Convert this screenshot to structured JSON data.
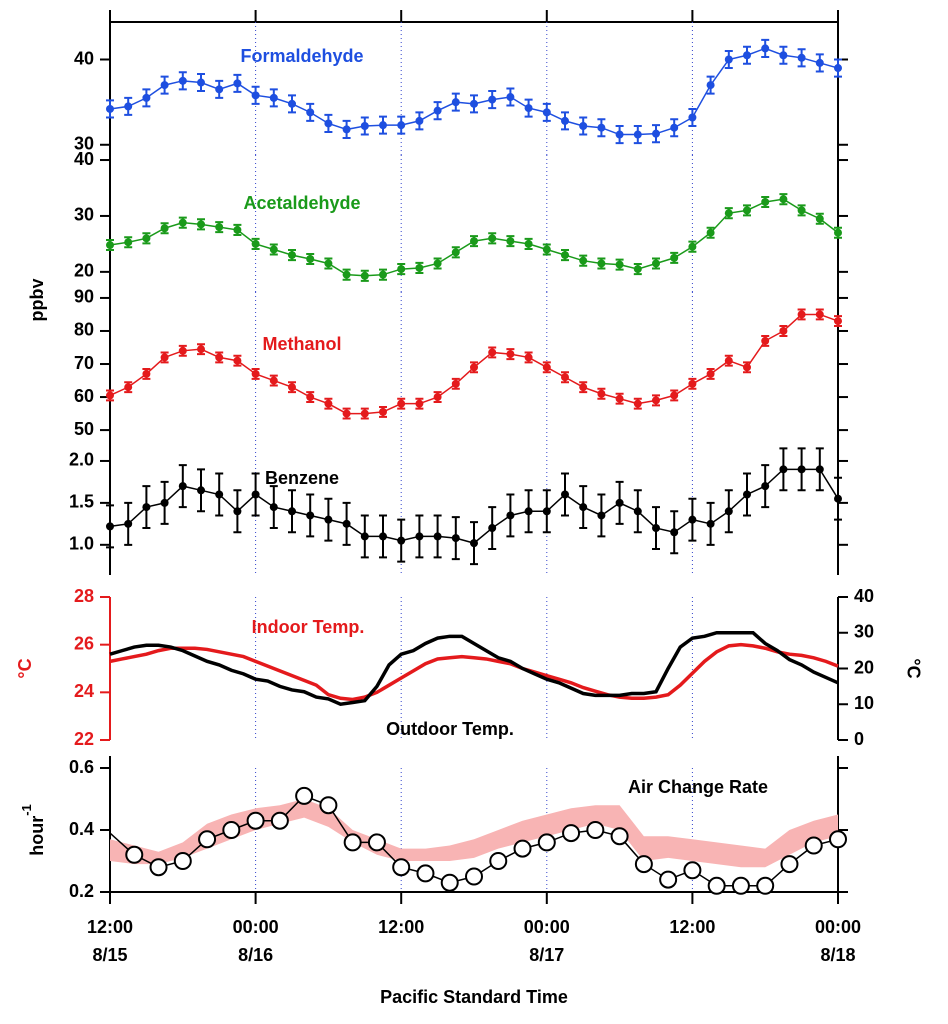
{
  "x_axis": {
    "label": "Pacific Standard Time",
    "xlim": [
      0,
      60
    ],
    "xticks": [
      {
        "value": 0,
        "label": "12:00"
      },
      {
        "value": 12,
        "label": "00:00"
      },
      {
        "value": 24,
        "label": "12:00"
      },
      {
        "value": 36,
        "label": "00:00"
      },
      {
        "value": 48,
        "label": "12:00"
      },
      {
        "value": 60,
        "label": "00:00"
      }
    ],
    "date_labels": [
      "8/15",
      "8/16",
      null,
      "8/17",
      null,
      "8/18"
    ],
    "grid": true
  },
  "voc_ylabel": "ppbv",
  "chart_data": [
    {
      "type": "errorbar",
      "ylim": [
        28.8,
        44.4
      ],
      "yticks": [
        30,
        40
      ],
      "x": [
        0,
        1.5,
        3,
        4.5,
        6,
        7.5,
        9,
        10.5,
        12,
        13.5,
        15,
        16.5,
        18,
        19.5,
        21,
        22.5,
        24,
        25.5,
        27,
        28.5,
        30,
        31.5,
        33,
        34.5,
        36,
        37.5,
        39,
        40.5,
        42,
        43.5,
        45,
        46.5,
        48,
        49.5,
        51,
        52.5,
        54,
        55.5,
        57,
        58.5,
        60
      ],
      "series": [
        {
          "name": "Formaldehyde",
          "color": "#1e4fe0",
          "values": [
            34.2,
            34.5,
            35.5,
            37.0,
            37.5,
            37.3,
            36.5,
            37.2,
            35.8,
            35.5,
            34.8,
            33.8,
            32.5,
            31.8,
            32.2,
            32.3,
            32.3,
            32.8,
            34.0,
            35.0,
            34.8,
            35.3,
            35.6,
            34.3,
            33.8,
            32.8,
            32.2,
            32.0,
            31.2,
            31.2,
            31.3,
            32.0,
            33.2,
            37.0,
            40.0,
            40.5,
            41.3,
            40.5,
            40.2,
            39.6,
            39.0
          ],
          "errors": [
            1,
            1,
            1,
            1,
            1,
            1,
            1,
            1,
            1,
            1,
            1,
            1,
            1,
            1,
            1,
            1,
            1,
            1,
            1,
            1,
            1,
            1,
            1,
            1,
            1,
            1,
            1,
            1,
            1,
            1,
            1,
            1,
            1,
            1,
            1,
            1,
            1,
            1,
            1,
            1,
            1
          ]
        }
      ]
    },
    {
      "type": "errorbar",
      "ylim": [
        16.4,
        40.9
      ],
      "yticks": [
        20,
        30,
        40
      ],
      "x": [
        0,
        1.5,
        3,
        4.5,
        6,
        7.5,
        9,
        10.5,
        12,
        13.5,
        15,
        16.5,
        18,
        19.5,
        21,
        22.5,
        24,
        25.5,
        27,
        28.5,
        30,
        31.5,
        33,
        34.5,
        36,
        37.5,
        39,
        40.5,
        42,
        43.5,
        45,
        46.5,
        48,
        49.5,
        51,
        52.5,
        54,
        55.5,
        57,
        58.5,
        60
      ],
      "series": [
        {
          "name": "Acetaldehyde",
          "color": "#1a9a1a",
          "values": [
            24.8,
            25.3,
            26,
            27.8,
            28.8,
            28.5,
            28,
            27.5,
            25,
            24,
            23,
            22.3,
            21.5,
            19.5,
            19.3,
            19.5,
            20.5,
            20.7,
            21.5,
            23.5,
            25.5,
            26,
            25.5,
            25,
            24,
            23,
            22,
            21.5,
            21.3,
            20.5,
            21.5,
            22.5,
            24.5,
            27,
            30.5,
            31,
            32.5,
            33,
            31,
            29.5,
            27
          ],
          "errors": [
            0.9,
            0.9,
            0.9,
            0.9,
            0.9,
            0.9,
            0.9,
            0.9,
            0.9,
            0.9,
            0.9,
            0.9,
            0.9,
            0.9,
            0.9,
            0.9,
            0.9,
            0.9,
            0.9,
            0.9,
            0.9,
            0.9,
            0.9,
            0.9,
            0.9,
            0.9,
            0.9,
            0.9,
            0.9,
            0.9,
            0.9,
            0.9,
            0.9,
            0.9,
            0.9,
            0.9,
            0.9,
            0.9,
            0.9,
            0.9,
            0.9
          ]
        }
      ]
    },
    {
      "type": "errorbar",
      "ylim": [
        47,
        91.8
      ],
      "yticks": [
        50,
        60,
        70,
        80,
        90
      ],
      "x": [
        0,
        1.5,
        3,
        4.5,
        6,
        7.5,
        9,
        10.5,
        12,
        13.5,
        15,
        16.5,
        18,
        19.5,
        21,
        22.5,
        24,
        25.5,
        27,
        28.5,
        30,
        31.5,
        33,
        34.5,
        36,
        37.5,
        39,
        40.5,
        42,
        43.5,
        45,
        46.5,
        48,
        49.5,
        51,
        52.5,
        54,
        55.5,
        57,
        58.5,
        60
      ],
      "series": [
        {
          "name": "Methanol",
          "color": "#e41a1c",
          "values": [
            60.5,
            63,
            67,
            72,
            74,
            74.5,
            72,
            71,
            67,
            65,
            63,
            60,
            58,
            55,
            55,
            55.5,
            58,
            58,
            60,
            64,
            69,
            73.5,
            73,
            72,
            69,
            66,
            63,
            61,
            59.5,
            58,
            59,
            60.5,
            64,
            67,
            71,
            69,
            77,
            80,
            85,
            85,
            83
          ],
          "errors": [
            1.5,
            1.5,
            1.5,
            1.5,
            1.5,
            1.5,
            1.5,
            1.5,
            1.5,
            1.5,
            1.5,
            1.5,
            1.5,
            1.5,
            1.5,
            1.5,
            1.5,
            1.5,
            1.5,
            1.5,
            1.5,
            1.5,
            1.5,
            1.5,
            1.5,
            1.5,
            1.5,
            1.5,
            1.5,
            1.5,
            1.5,
            1.5,
            1.5,
            1.5,
            1.5,
            1.5,
            1.5,
            1.5,
            1.5,
            1.5,
            1.5
          ]
        }
      ]
    },
    {
      "type": "errorbar",
      "ylim": [
        0.64,
        2.25
      ],
      "yticks": [
        {
          "value": 1,
          "label": "1.0"
        },
        {
          "value": 1.5,
          "label": "1.5"
        },
        {
          "value": 2,
          "label": "2.0"
        }
      ],
      "x": [
        0,
        1.5,
        3,
        4.5,
        6,
        7.5,
        9,
        10.5,
        12,
        13.5,
        15,
        16.5,
        18,
        19.5,
        21,
        22.5,
        24,
        25.5,
        27,
        28.5,
        30,
        31.5,
        33,
        34.5,
        36,
        37.5,
        39,
        40.5,
        42,
        43.5,
        45,
        46.5,
        48,
        49.5,
        51,
        52.5,
        54,
        55.5,
        57,
        58.5,
        60
      ],
      "series": [
        {
          "name": "Benzene",
          "color": "#000000",
          "values": [
            1.22,
            1.25,
            1.45,
            1.5,
            1.7,
            1.65,
            1.6,
            1.4,
            1.6,
            1.45,
            1.4,
            1.35,
            1.3,
            1.25,
            1.1,
            1.1,
            1.05,
            1.1,
            1.1,
            1.08,
            1.02,
            1.2,
            1.35,
            1.4,
            1.4,
            1.6,
            1.45,
            1.35,
            1.5,
            1.4,
            1.2,
            1.15,
            1.3,
            1.25,
            1.4,
            1.6,
            1.7,
            1.9,
            1.9,
            1.9,
            1.55
          ],
          "errors": [
            0.25,
            0.25,
            0.25,
            0.25,
            0.25,
            0.25,
            0.25,
            0.25,
            0.25,
            0.25,
            0.25,
            0.25,
            0.25,
            0.25,
            0.25,
            0.25,
            0.25,
            0.25,
            0.25,
            0.25,
            0.25,
            0.25,
            0.25,
            0.25,
            0.25,
            0.25,
            0.25,
            0.25,
            0.25,
            0.25,
            0.25,
            0.25,
            0.25,
            0.25,
            0.25,
            0.25,
            0.25,
            0.25,
            0.25,
            0.25,
            0.25
          ]
        }
      ]
    },
    {
      "type": "line",
      "ylim": [
        22,
        28
      ],
      "yticks": [
        22,
        24,
        26,
        28
      ],
      "ylabel": "°C",
      "yaxis_color": "#e41a1c",
      "y2lim": [
        0,
        40
      ],
      "y2ticks": [
        0,
        10,
        20,
        30,
        40
      ],
      "y2label": "°C",
      "x": [
        0,
        1,
        2,
        3,
        4,
        5,
        6,
        7,
        8,
        9,
        10,
        11,
        12,
        13,
        14,
        15,
        16,
        17,
        18,
        19,
        20,
        21,
        22,
        23,
        24,
        25,
        26,
        27,
        28,
        29,
        30,
        31,
        32,
        33,
        34,
        35,
        36,
        37,
        38,
        39,
        40,
        41,
        42,
        43,
        44,
        45,
        46,
        47,
        48,
        49,
        50,
        51,
        52,
        53,
        54,
        55,
        56,
        57,
        58,
        59,
        60
      ],
      "series": [
        {
          "name": "Indoor Temp.",
          "color": "#e41a1c",
          "values": [
            25.3,
            25.4,
            25.5,
            25.6,
            25.75,
            25.85,
            25.85,
            25.85,
            25.8,
            25.7,
            25.6,
            25.5,
            25.3,
            25.1,
            24.9,
            24.7,
            24.5,
            24.3,
            23.9,
            23.75,
            23.7,
            23.8,
            24.0,
            24.3,
            24.6,
            24.9,
            25.2,
            25.4,
            25.45,
            25.5,
            25.45,
            25.4,
            25.3,
            25.2,
            25.0,
            24.85,
            24.7,
            24.55,
            24.4,
            24.2,
            24.05,
            23.9,
            23.8,
            23.75,
            23.75,
            23.8,
            23.9,
            24.3,
            24.8,
            25.3,
            25.7,
            25.95,
            26.0,
            25.95,
            25.85,
            25.7,
            25.6,
            25.55,
            25.45,
            25.3,
            25.1
          ]
        },
        {
          "name": "Outdoor Temp.",
          "color": "#000000",
          "axis": "y2",
          "values": [
            24,
            25,
            26,
            26.5,
            26.5,
            26,
            25,
            23.5,
            22,
            21,
            19.5,
            18.5,
            17,
            16.5,
            15,
            14,
            13.5,
            12,
            11.5,
            10,
            10.5,
            11,
            15,
            21,
            24,
            25,
            27,
            28.5,
            29,
            29,
            27,
            25,
            23,
            22,
            20,
            18.5,
            17,
            16,
            14.5,
            13,
            12.5,
            12.5,
            12.5,
            13,
            13,
            13.5,
            20,
            26,
            28.5,
            29,
            30,
            30,
            30,
            30,
            27,
            25,
            22.5,
            21,
            19,
            17.5,
            16
          ]
        }
      ]
    },
    {
      "type": "band_line",
      "title": "Air Change Rate",
      "ylabel": "hour",
      "ylabel_sup": "-1",
      "ylim": [
        0.2,
        0.6
      ],
      "yticks": [
        {
          "value": 0.2,
          "label": "0.2"
        },
        {
          "value": 0.4,
          "label": "0.4"
        },
        {
          "value": 0.6,
          "label": "0.6"
        }
      ],
      "x": [
        0,
        2,
        4,
        6,
        8,
        10,
        12,
        14,
        16,
        18,
        20,
        22,
        24,
        26,
        28,
        30,
        32,
        34,
        36,
        38,
        40,
        42,
        44,
        46,
        48,
        50,
        52,
        54,
        56,
        58,
        60
      ],
      "band": {
        "color": "#f8b4b4",
        "upper": [
          0.37,
          0.35,
          0.33,
          0.36,
          0.42,
          0.45,
          0.47,
          0.48,
          0.5,
          0.47,
          0.4,
          0.37,
          0.34,
          0.34,
          0.35,
          0.37,
          0.4,
          0.43,
          0.45,
          0.47,
          0.48,
          0.48,
          0.38,
          0.38,
          0.37,
          0.36,
          0.35,
          0.34,
          0.4,
          0.43,
          0.45
        ],
        "lower": [
          0.3,
          0.29,
          0.29,
          0.31,
          0.34,
          0.37,
          0.4,
          0.42,
          0.44,
          0.41,
          0.36,
          0.32,
          0.3,
          0.3,
          0.3,
          0.31,
          0.34,
          0.36,
          0.38,
          0.4,
          0.42,
          0.4,
          0.3,
          0.31,
          0.3,
          0.29,
          0.28,
          0.28,
          0.32,
          0.36,
          0.38
        ]
      },
      "series": [
        {
          "color": "#000000",
          "values": [
            0.39,
            0.32,
            0.28,
            0.3,
            0.37,
            0.4,
            0.43,
            0.43,
            0.51,
            0.48,
            0.36,
            0.36,
            0.28,
            0.26,
            0.23,
            0.25,
            0.3,
            0.34,
            0.36,
            0.39,
            0.4,
            0.38,
            0.29,
            0.24,
            0.27,
            0.22,
            0.22,
            0.22,
            0.29,
            0.35,
            0.37
          ]
        }
      ]
    }
  ]
}
